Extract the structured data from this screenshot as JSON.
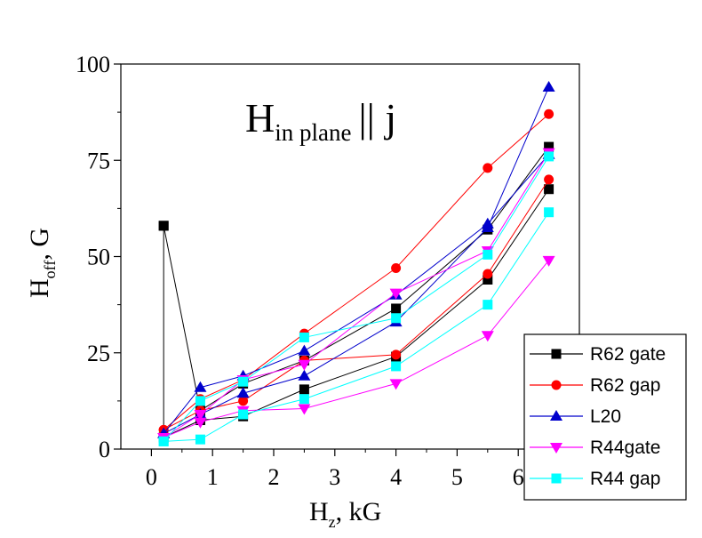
{
  "chart_data": {
    "type": "line",
    "annotation": {
      "main": "H",
      "sub": "in plane",
      "suffix": "|| j"
    },
    "xlabel": {
      "main": "H",
      "sub": "z",
      "suffix": ", kG"
    },
    "ylabel": {
      "main": "H",
      "sub": "off",
      "suffix": ", G"
    },
    "xlim": [
      -0.5,
      7.0
    ],
    "ylim": [
      0,
      100
    ],
    "xticks": [
      0,
      1,
      2,
      3,
      4,
      5,
      6
    ],
    "yticks": [
      0,
      25,
      50,
      75,
      100
    ],
    "grid": false,
    "legend_position": "bottom-right",
    "series": [
      {
        "name": "R62 gate",
        "color": "#000000",
        "marker": "square",
        "branches": [
          [
            [
              0.2,
              58
            ],
            [
              0.2,
              3
            ],
            [
              0.8,
              7.5
            ],
            [
              1.5,
              8.5
            ],
            [
              2.5,
              15.5
            ],
            [
              4.0,
              24
            ],
            [
              5.5,
              44
            ],
            [
              6.5,
              67.5
            ]
          ],
          [
            [
              0.2,
              58
            ],
            [
              0.8,
              10
            ],
            [
              1.5,
              17
            ],
            [
              2.5,
              23
            ],
            [
              4.0,
              36.5
            ],
            [
              5.5,
              57
            ],
            [
              6.5,
              78.5
            ]
          ]
        ]
      },
      {
        "name": "R62 gap",
        "color": "#ff0000",
        "marker": "circle",
        "branches": [
          [
            [
              0.2,
              5
            ],
            [
              0.8,
              10
            ],
            [
              1.5,
              12.5
            ],
            [
              2.5,
              23
            ],
            [
              4.0,
              24.5
            ],
            [
              5.5,
              45.5
            ],
            [
              6.5,
              70
            ]
          ],
          [
            [
              0.2,
              5
            ],
            [
              0.8,
              13
            ],
            [
              1.5,
              18
            ],
            [
              2.5,
              30
            ],
            [
              4.0,
              47
            ],
            [
              5.5,
              73
            ],
            [
              6.5,
              87
            ]
          ]
        ]
      },
      {
        "name": "L20",
        "color": "#0000cc",
        "marker": "triangle-up",
        "branches": [
          [
            [
              0.2,
              4
            ],
            [
              0.8,
              9
            ],
            [
              1.5,
              14.5
            ],
            [
              2.5,
              19
            ],
            [
              4.0,
              33
            ],
            [
              5.5,
              57.5
            ],
            [
              6.5,
              94
            ]
          ],
          [
            [
              0.2,
              4
            ],
            [
              0.8,
              16
            ],
            [
              1.5,
              19
            ],
            [
              2.5,
              25.5
            ],
            [
              4.0,
              40
            ],
            [
              5.5,
              58.5
            ],
            [
              6.5,
              76.5
            ]
          ]
        ]
      },
      {
        "name": "R44gate",
        "color": "#ff00ff",
        "marker": "triangle-down",
        "branches": [
          [
            [
              0.2,
              3
            ],
            [
              0.8,
              7
            ],
            [
              1.5,
              10
            ],
            [
              2.5,
              10.5
            ],
            [
              4.0,
              17
            ],
            [
              5.5,
              29.5
            ],
            [
              6.5,
              49
            ]
          ],
          [
            [
              0.2,
              3
            ],
            [
              0.8,
              9
            ],
            [
              1.5,
              18
            ],
            [
              2.5,
              22
            ],
            [
              4.0,
              40.5
            ],
            [
              5.5,
              51.5
            ],
            [
              6.5,
              77
            ]
          ]
        ]
      },
      {
        "name": "R44 gap",
        "color": "#00ffff",
        "marker": "square",
        "branches": [
          [
            [
              0.2,
              2
            ],
            [
              0.8,
              2.5
            ],
            [
              1.5,
              9
            ],
            [
              2.5,
              13
            ],
            [
              4.0,
              21.5
            ],
            [
              5.5,
              37.5
            ],
            [
              6.5,
              61.5
            ]
          ],
          [
            [
              0.2,
              2
            ],
            [
              0.8,
              12.5
            ],
            [
              1.5,
              17.5
            ],
            [
              2.5,
              29
            ],
            [
              4.0,
              34
            ],
            [
              5.5,
              50.5
            ],
            [
              6.5,
              76
            ]
          ]
        ]
      }
    ]
  }
}
